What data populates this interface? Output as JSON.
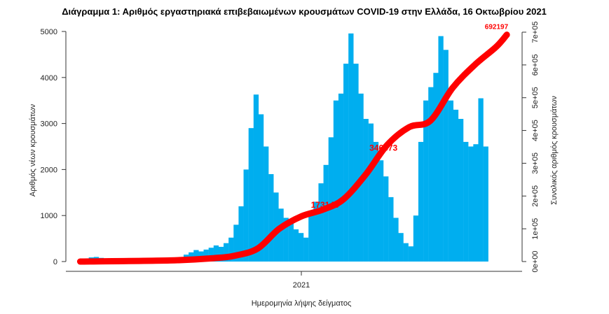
{
  "chart_data": {
    "type": "bar+line",
    "title": "Διάγραμμα 1: Αριθμός εργαστηριακά επιβεβαιωμένων κρουσμάτων COVID-19 στην Ελλάδα, 16 Οκτωβρίου 2021",
    "xlabel": "Ημερομηνία λήψης δείγματος",
    "ylabel": "Αριθμός νέων κρουσμάτων",
    "y2label": "Συνολικός αριθμός κρουσμάτων",
    "x_ticks": [
      {
        "date": "2021-01-01",
        "label": "2021"
      }
    ],
    "xlim": [
      "2020-02-20",
      "2021-10-30"
    ],
    "ylim": [
      0,
      5000
    ],
    "y_ticks": [
      "0",
      "1000",
      "2000",
      "3000",
      "4000",
      "5000"
    ],
    "y2lim": [
      0,
      700000
    ],
    "y2_ticks": [
      "0e+00",
      "1e+05",
      "2e+05",
      "3e+05",
      "4e+05",
      "5e+05",
      "6e+05",
      "7e+05"
    ],
    "bar_color": "#00aeef",
    "line_color": "#ff0000",
    "grid": false,
    "legend": "none",
    "new_cases_weekly": {
      "week_start": "2020-02-24",
      "values": [
        20,
        60,
        90,
        100,
        80,
        60,
        40,
        30,
        20,
        15,
        12,
        10,
        10,
        10,
        15,
        20,
        20,
        25,
        30,
        40,
        60,
        150,
        200,
        250,
        220,
        260,
        300,
        350,
        320,
        400,
        520,
        800,
        1200,
        2000,
        2900,
        3629,
        3200,
        2500,
        1900,
        1500,
        1150,
        950,
        900,
        700,
        620,
        520,
        1000,
        1300,
        1700,
        2100,
        2700,
        3500,
        3650,
        4300,
        4957,
        4300,
        3650,
        3100,
        3000,
        2600,
        2200,
        1850,
        1400,
        950,
        620,
        400,
        330,
        1000,
        2600,
        3500,
        3790,
        4100,
        4899,
        4600,
        3500,
        3300,
        3100,
        2600,
        2500,
        2550,
        3548,
        2500
      ]
    },
    "cumulative": {
      "dates": [
        "2020-02-26",
        "2020-07-01",
        "2020-09-01",
        "2020-10-01",
        "2020-11-01",
        "2020-12-01",
        "2021-01-01",
        "2021-02-01",
        "2021-03-01",
        "2021-04-01",
        "2021-05-01",
        "2021-06-01",
        "2021-07-01",
        "2021-08-01",
        "2021-09-01",
        "2021-10-01",
        "2021-10-16"
      ],
      "values": [
        0,
        3400,
        10500,
        18500,
        40000,
        100000,
        138000,
        159000,
        190000,
        265000,
        355000,
        410000,
        430000,
        530000,
        600000,
        655000,
        692197
      ]
    },
    "annotations": [
      {
        "date": "2021-02-05",
        "value": 173146,
        "label": "173146"
      },
      {
        "date": "2021-04-28",
        "value": 346873,
        "label": "346873"
      },
      {
        "date": "2021-10-16",
        "value": 692197,
        "label": "692197"
      }
    ]
  }
}
